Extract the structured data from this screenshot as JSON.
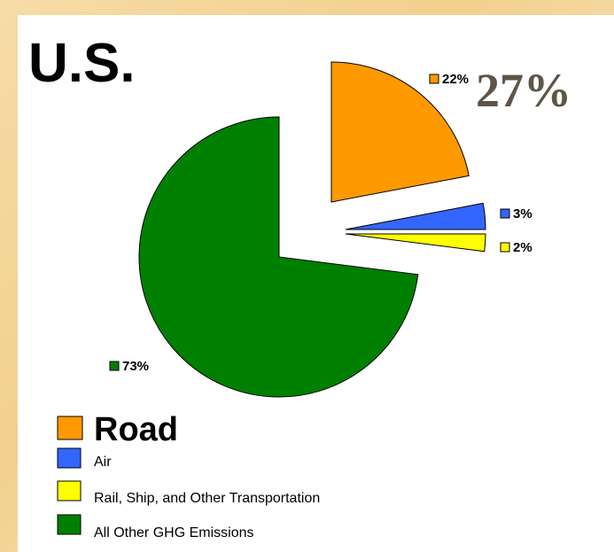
{
  "chart_data": {
    "type": "pie",
    "title": "U.S.",
    "annotation": "27%",
    "categories": [
      "Road",
      "Air",
      "Rail, Ship, and Other Transportation",
      "All Other GHG Emissions"
    ],
    "values": [
      22,
      3,
      2,
      73
    ],
    "value_labels": [
      "22%",
      "3%",
      "2%",
      "73%"
    ],
    "colors": [
      "#ff9900",
      "#3366ff",
      "#ffff00",
      "#008000"
    ]
  }
}
